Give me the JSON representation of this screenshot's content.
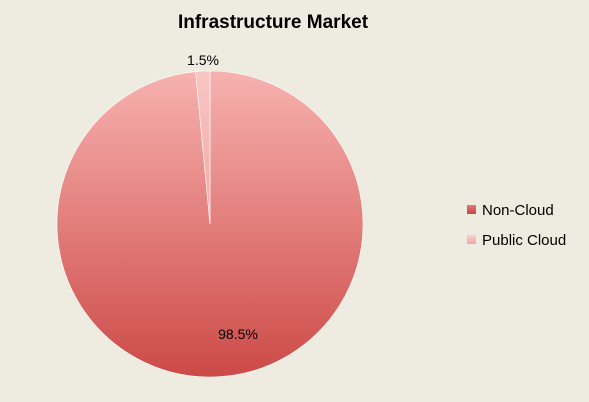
{
  "chart_data": {
    "type": "pie",
    "title": "Infrastructure Market",
    "categories": [
      "Non-Cloud",
      "Public Cloud"
    ],
    "values": [
      98.5,
      1.5
    ],
    "labels": [
      "98.5%",
      "1.5%"
    ],
    "colors": [
      "#d05a58",
      "#f7b3b2"
    ],
    "legend_position": "right"
  }
}
